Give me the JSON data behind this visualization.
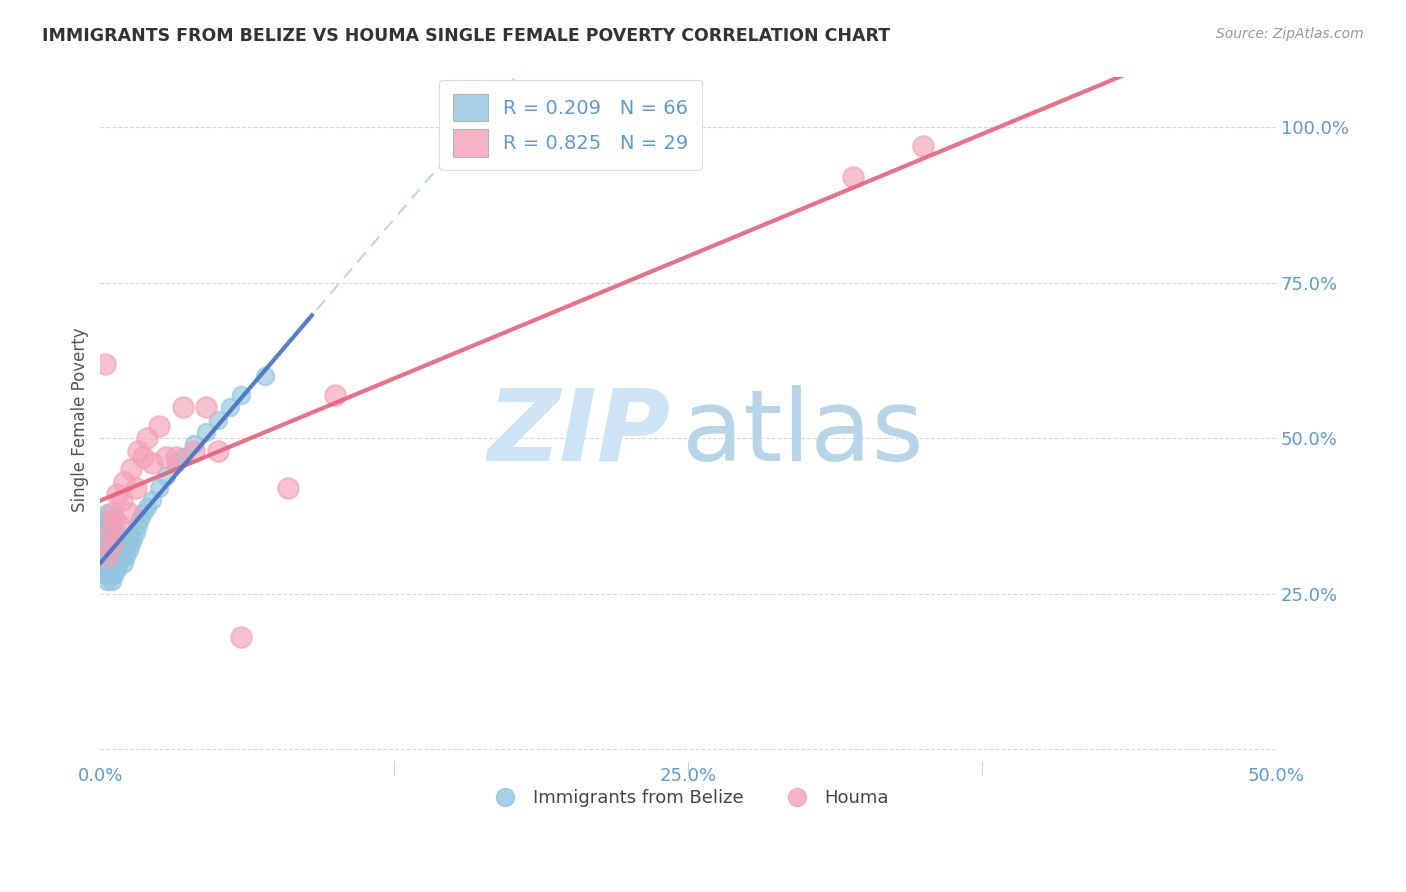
{
  "title": "IMMIGRANTS FROM BELIZE VS HOUMA SINGLE FEMALE POVERTY CORRELATION CHART",
  "source": "Source: ZipAtlas.com",
  "ylabel": "Single Female Poverty",
  "xlim": [
    0.0,
    0.5
  ],
  "ylim": [
    -0.02,
    1.08
  ],
  "blue_color": "#92c5de",
  "pink_color": "#f4a0b8",
  "blue_line_color": "#4472c4",
  "pink_line_color": "#e8607a",
  "background_color": "#ffffff",
  "grid_color": "#c8c8c8",
  "tick_color": "#5b9bd5",
  "title_color": "#333333",
  "source_color": "#999999",
  "ylabel_color": "#555555",
  "watermark_zip_color": "#cce4f5",
  "watermark_atlas_color": "#b8d4e8",
  "blue_scatter_x": [
    0.001,
    0.001,
    0.001,
    0.002,
    0.002,
    0.002,
    0.002,
    0.002,
    0.003,
    0.003,
    0.003,
    0.003,
    0.003,
    0.003,
    0.003,
    0.003,
    0.003,
    0.003,
    0.004,
    0.004,
    0.004,
    0.004,
    0.004,
    0.005,
    0.005,
    0.005,
    0.005,
    0.005,
    0.005,
    0.006,
    0.006,
    0.006,
    0.006,
    0.007,
    0.007,
    0.007,
    0.007,
    0.008,
    0.008,
    0.008,
    0.009,
    0.009,
    0.01,
    0.01,
    0.011,
    0.011,
    0.012,
    0.012,
    0.013,
    0.014,
    0.015,
    0.016,
    0.017,
    0.018,
    0.02,
    0.022,
    0.025,
    0.028,
    0.032,
    0.035,
    0.04,
    0.045,
    0.05,
    0.055,
    0.06,
    0.07
  ],
  "blue_scatter_y": [
    0.31,
    0.34,
    0.37,
    0.28,
    0.3,
    0.32,
    0.34,
    0.36,
    0.27,
    0.29,
    0.3,
    0.31,
    0.32,
    0.33,
    0.35,
    0.36,
    0.37,
    0.38,
    0.28,
    0.3,
    0.32,
    0.34,
    0.36,
    0.27,
    0.29,
    0.31,
    0.33,
    0.35,
    0.37,
    0.28,
    0.3,
    0.32,
    0.34,
    0.29,
    0.31,
    0.33,
    0.35,
    0.3,
    0.32,
    0.34,
    0.31,
    0.33,
    0.3,
    0.33,
    0.31,
    0.33,
    0.32,
    0.34,
    0.33,
    0.34,
    0.35,
    0.36,
    0.37,
    0.38,
    0.39,
    0.4,
    0.42,
    0.44,
    0.46,
    0.47,
    0.49,
    0.51,
    0.53,
    0.55,
    0.57,
    0.6
  ],
  "pink_scatter_x": [
    0.002,
    0.003,
    0.004,
    0.005,
    0.005,
    0.006,
    0.007,
    0.008,
    0.009,
    0.01,
    0.012,
    0.013,
    0.015,
    0.016,
    0.018,
    0.02,
    0.022,
    0.025,
    0.028,
    0.032,
    0.035,
    0.04,
    0.045,
    0.05,
    0.06,
    0.08,
    0.1,
    0.32,
    0.35
  ],
  "pink_scatter_y": [
    0.62,
    0.31,
    0.35,
    0.38,
    0.33,
    0.37,
    0.41,
    0.36,
    0.4,
    0.43,
    0.38,
    0.45,
    0.42,
    0.48,
    0.47,
    0.5,
    0.46,
    0.52,
    0.47,
    0.47,
    0.55,
    0.48,
    0.55,
    0.48,
    0.18,
    0.42,
    0.57,
    0.92,
    0.97
  ],
  "legend_labels": [
    "R = 0.209   N = 66",
    "R = 0.825   N = 29"
  ],
  "bottom_legend_labels": [
    "Immigrants from Belize",
    "Houma"
  ]
}
